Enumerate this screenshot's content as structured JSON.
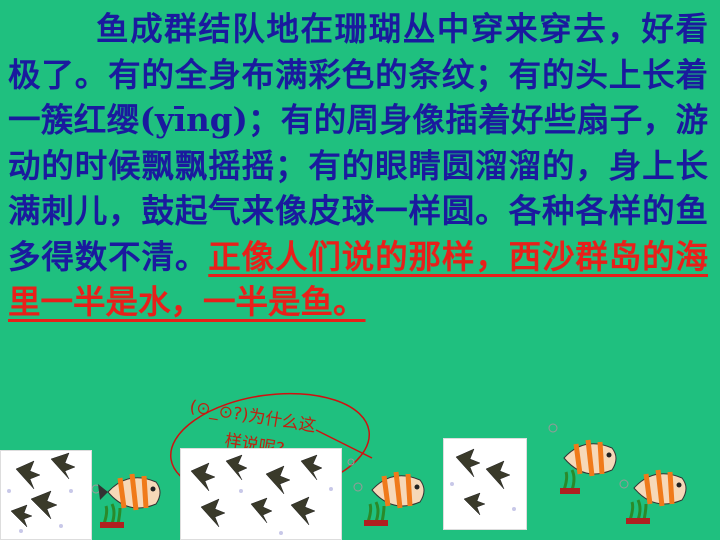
{
  "passage": {
    "body": "鱼成群结队地在珊瑚丛中穿来穿去，好看极了。有的全身布满彩色的条纹；有的头上长着一簇红缨(yīng)；有的周身像插着好些扇子，游动的时候飘飘摇摇；有的眼睛圆溜溜的，身上长满刺儿，鼓起气来像皮球一样圆。各种各样的鱼多得数不清。",
    "highlight": "正像人们说的那样，西沙群岛的海里一半是水，一半是鱼。"
  },
  "callout": {
    "line1": "(⊙_⊙?)为什么这",
    "line2": "样说呢?"
  },
  "colors": {
    "background": "#1fc07f",
    "body_text": "#1a1a9e",
    "highlight_text": "#e8201a",
    "callout": "#c02010"
  },
  "icons": [
    "angelfish-tank-picture",
    "clownfish-picture"
  ]
}
